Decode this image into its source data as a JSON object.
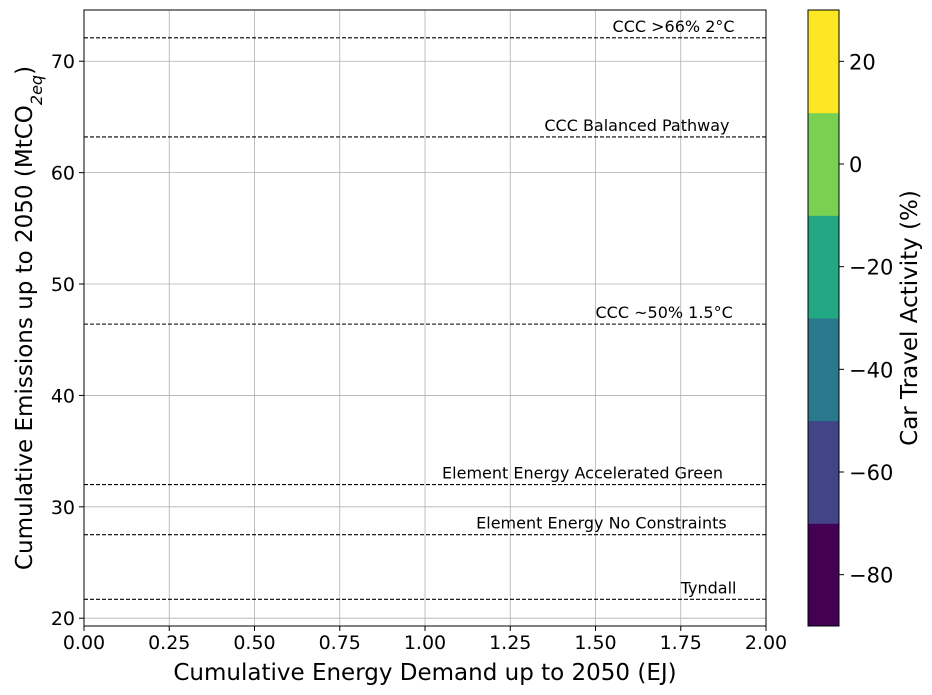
{
  "chart_data": {
    "type": "scatter",
    "title": "",
    "xlabel": "Cumulative Energy Demand up to 2050 (EJ)",
    "ylabel_prefix": "Cumulative Emissions up to 2050 (MtCO",
    "ylabel_subscript": "2eq",
    "ylabel_suffix": ")",
    "xlim": [
      0,
      2
    ],
    "ylim": [
      19.3,
      74.6
    ],
    "xticks": [
      0.0,
      0.25,
      0.5,
      0.75,
      1.0,
      1.25,
      1.5,
      1.75,
      2.0
    ],
    "xtick_labels": [
      "0.00",
      "0.25",
      "0.50",
      "0.75",
      "1.00",
      "1.25",
      "1.50",
      "1.75",
      "2.00"
    ],
    "yticks": [
      20,
      30,
      40,
      50,
      60,
      70
    ],
    "ytick_labels": [
      "20",
      "30",
      "40",
      "50",
      "60",
      "70"
    ],
    "grid": true,
    "series": [],
    "reference_lines": [
      {
        "label": "CCC >66% 2°C",
        "y": 72.1,
        "label_x": 1.55
      },
      {
        "label": "CCC Balanced Pathway",
        "y": 63.2,
        "label_x": 1.35
      },
      {
        "label": "CCC ~50% 1.5°C",
        "y": 46.4,
        "label_x": 1.5
      },
      {
        "label": "Element Energy Accelerated Green",
        "y": 32.0,
        "label_x": 1.05
      },
      {
        "label": "Element Energy No Constraints",
        "y": 27.5,
        "label_x": 1.15
      },
      {
        "label": "Tyndall",
        "y": 21.7,
        "label_x": 1.75
      }
    ],
    "colorbar": {
      "label": "Car Travel Activity (%)",
      "range": [
        -90,
        30
      ],
      "bounds": [
        -90,
        -70,
        -50,
        -30,
        -10,
        10,
        30
      ],
      "colors": [
        "#440154",
        "#414487",
        "#2a788e",
        "#22a884",
        "#7ad151",
        "#fde725"
      ],
      "ticks": [
        -80,
        -60,
        -40,
        -20,
        0,
        20
      ],
      "tick_labels": [
        "−80",
        "−60",
        "−40",
        "−20",
        "0",
        "20"
      ]
    }
  }
}
